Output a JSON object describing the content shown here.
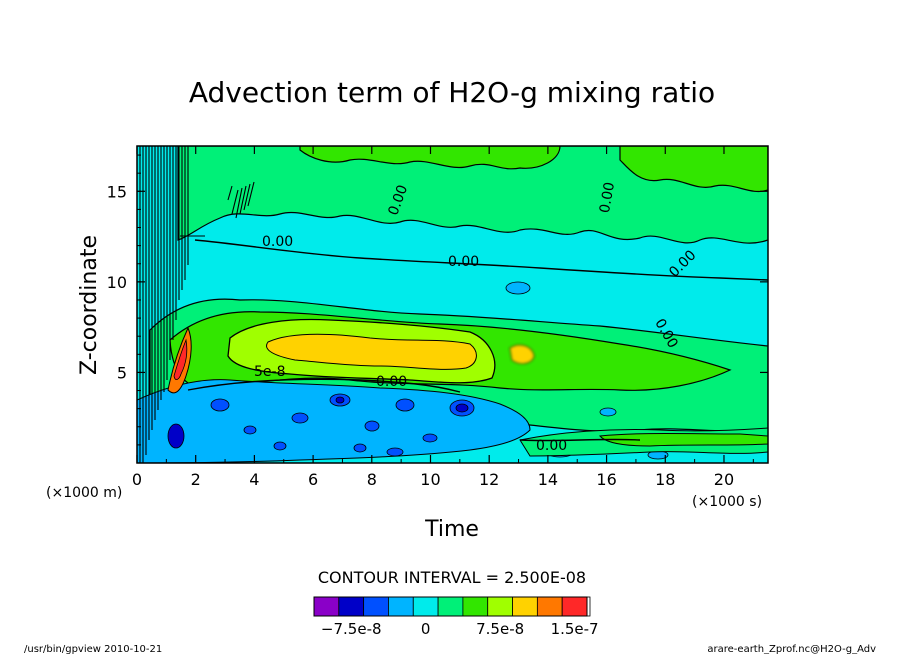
{
  "chart_data": {
    "type": "heatmap",
    "title": "Advection term of H2O-g mixing ratio",
    "xlabel": "Time",
    "ylabel": "Z-coordinate",
    "x_unit": "(×1000 s)",
    "y_unit": "(×1000 m)",
    "xlim": [
      0,
      21.5
    ],
    "ylim": [
      0,
      17.5
    ],
    "x_ticks": [
      "0",
      "2",
      "4",
      "6",
      "8",
      "10",
      "12",
      "14",
      "16",
      "18",
      "20"
    ],
    "x_tick_values": [
      0,
      2,
      4,
      6,
      8,
      10,
      12,
      14,
      16,
      18,
      20
    ],
    "y_ticks": [
      "5",
      "10",
      "15"
    ],
    "y_tick_values": [
      5,
      10,
      15
    ],
    "contour_interval_text": "CONTOUR INTERVAL = 2.500E-08",
    "contour_labels": [
      "0.00",
      "0.00",
      "0.00",
      "0.00",
      "0.00",
      "0.00",
      "0.00",
      "5e-8",
      "0.00"
    ],
    "colorbar": {
      "levels": [
        -1e-07,
        -7.5e-08,
        -5e-08,
        -2.5e-08,
        0,
        2.5e-08,
        5e-08,
        7.5e-08,
        1e-07,
        1.25e-07,
        1.5e-07
      ],
      "colors": [
        "#8a00c8",
        "#0000c8",
        "#0050ff",
        "#00b4ff",
        "#00ebeb",
        "#00f078",
        "#32e600",
        "#a0ff00",
        "#ffd200",
        "#ff7800",
        "#ff2828"
      ],
      "tick_labels": [
        "−7.5e-8",
        "0",
        "7.5e-8",
        "1.5e-7"
      ]
    },
    "regions": [
      {
        "name": "background",
        "level": "0 to 2.5e-8",
        "color": "#00ebeb"
      },
      {
        "name": "upper positive band",
        "level": "2.5e-8 to 5e-8",
        "color": "#00f078"
      },
      {
        "name": "mid-level maximum",
        "level": "7.5e-8 to 1e-7",
        "color": "#ffd200"
      },
      {
        "name": "updraft maximum",
        "level": "1.5e-7",
        "color": "#ff2828"
      },
      {
        "name": "lower negative layer",
        "level": "-2.5e-8 to -7.5e-8",
        "color": "#00b4ff"
      }
    ]
  },
  "footer": {
    "left": "/usr/bin/gpview  2010-10-21",
    "right": "arare-earth_Zprof.nc@H2O-g_Adv"
  },
  "colors": {
    "frame": "#000000",
    "background": "#ffffff"
  }
}
